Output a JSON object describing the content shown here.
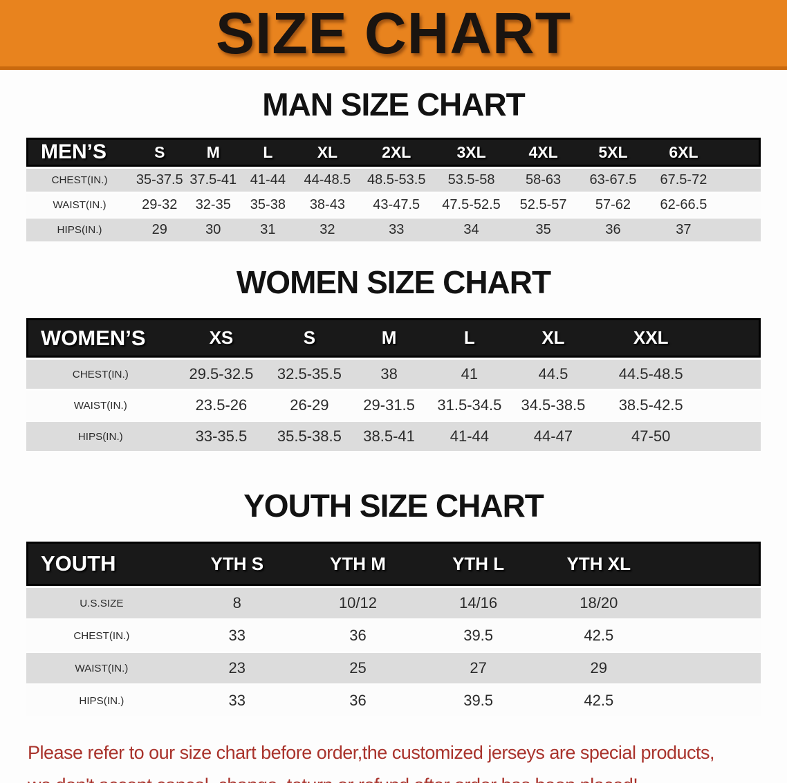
{
  "banner": {
    "title": "SIZE CHART"
  },
  "colors": {
    "banner_bg": "#E8831E",
    "banner_edge": "#C9690E",
    "header_bar": "#191919",
    "row_stripe": "#DCDCDC",
    "row_alt": "#FCFCFC",
    "note_red": "#A9332C"
  },
  "sections": [
    {
      "title": "MAN SIZE CHART",
      "header_label": "MEN’S",
      "columns": [
        "S",
        "M",
        "L",
        "XL",
        "2XL",
        "3XL",
        "4XL",
        "5XL",
        "6XL"
      ],
      "rows": [
        {
          "label": "CHEST(IN.)",
          "values": [
            "35-37.5",
            "37.5-41",
            "41-44",
            "44-48.5",
            "48.5-53.5",
            "53.5-58",
            "58-63",
            "63-67.5",
            "67.5-72"
          ]
        },
        {
          "label": "WAIST(IN.)",
          "values": [
            "29-32",
            "32-35",
            "35-38",
            "38-43",
            "43-47.5",
            "47.5-52.5",
            "52.5-57",
            "57-62",
            "62-66.5"
          ]
        },
        {
          "label": "HIPS(IN.)",
          "values": [
            "29",
            "30",
            "31",
            "32",
            "33",
            "34",
            "35",
            "36",
            "37"
          ]
        }
      ]
    },
    {
      "title": "WOMEN SIZE CHART",
      "header_label": "WOMEN’S",
      "columns": [
        "XS",
        "S",
        "M",
        "L",
        "XL",
        "XXL"
      ],
      "rows": [
        {
          "label": "CHEST(IN.)",
          "values": [
            "29.5-32.5",
            "32.5-35.5",
            "38",
            "41",
            "44.5",
            "44.5-48.5"
          ]
        },
        {
          "label": "WAIST(IN.)",
          "values": [
            "23.5-26",
            "26-29",
            "29-31.5",
            "31.5-34.5",
            "34.5-38.5",
            "38.5-42.5"
          ]
        },
        {
          "label": "HIPS(IN.)",
          "values": [
            "33-35.5",
            "35.5-38.5",
            "38.5-41",
            "41-44",
            "44-47",
            "47-50"
          ]
        }
      ]
    },
    {
      "title": "YOUTH SIZE CHART",
      "header_label": "YOUTH",
      "columns": [
        "YTH S",
        "YTH M",
        "YTH L",
        "YTH XL"
      ],
      "rows": [
        {
          "label": "U.S.SIZE",
          "values": [
            "8",
            "10/12",
            "14/16",
            "18/20"
          ]
        },
        {
          "label": "CHEST(IN.)",
          "values": [
            "33",
            "36",
            "39.5",
            "42.5"
          ]
        },
        {
          "label": "WAIST(IN.)",
          "values": [
            "23",
            "25",
            "27",
            "29"
          ]
        },
        {
          "label": "HIPS(IN.)",
          "values": [
            "33",
            "36",
            "39.5",
            "42.5"
          ]
        }
      ]
    }
  ],
  "footer": {
    "line1": "Please refer to our size chart before order,the customized jerseys are special products,",
    "line2": "we don't accept cancel, change, teturn or refund after order has been placed!"
  }
}
